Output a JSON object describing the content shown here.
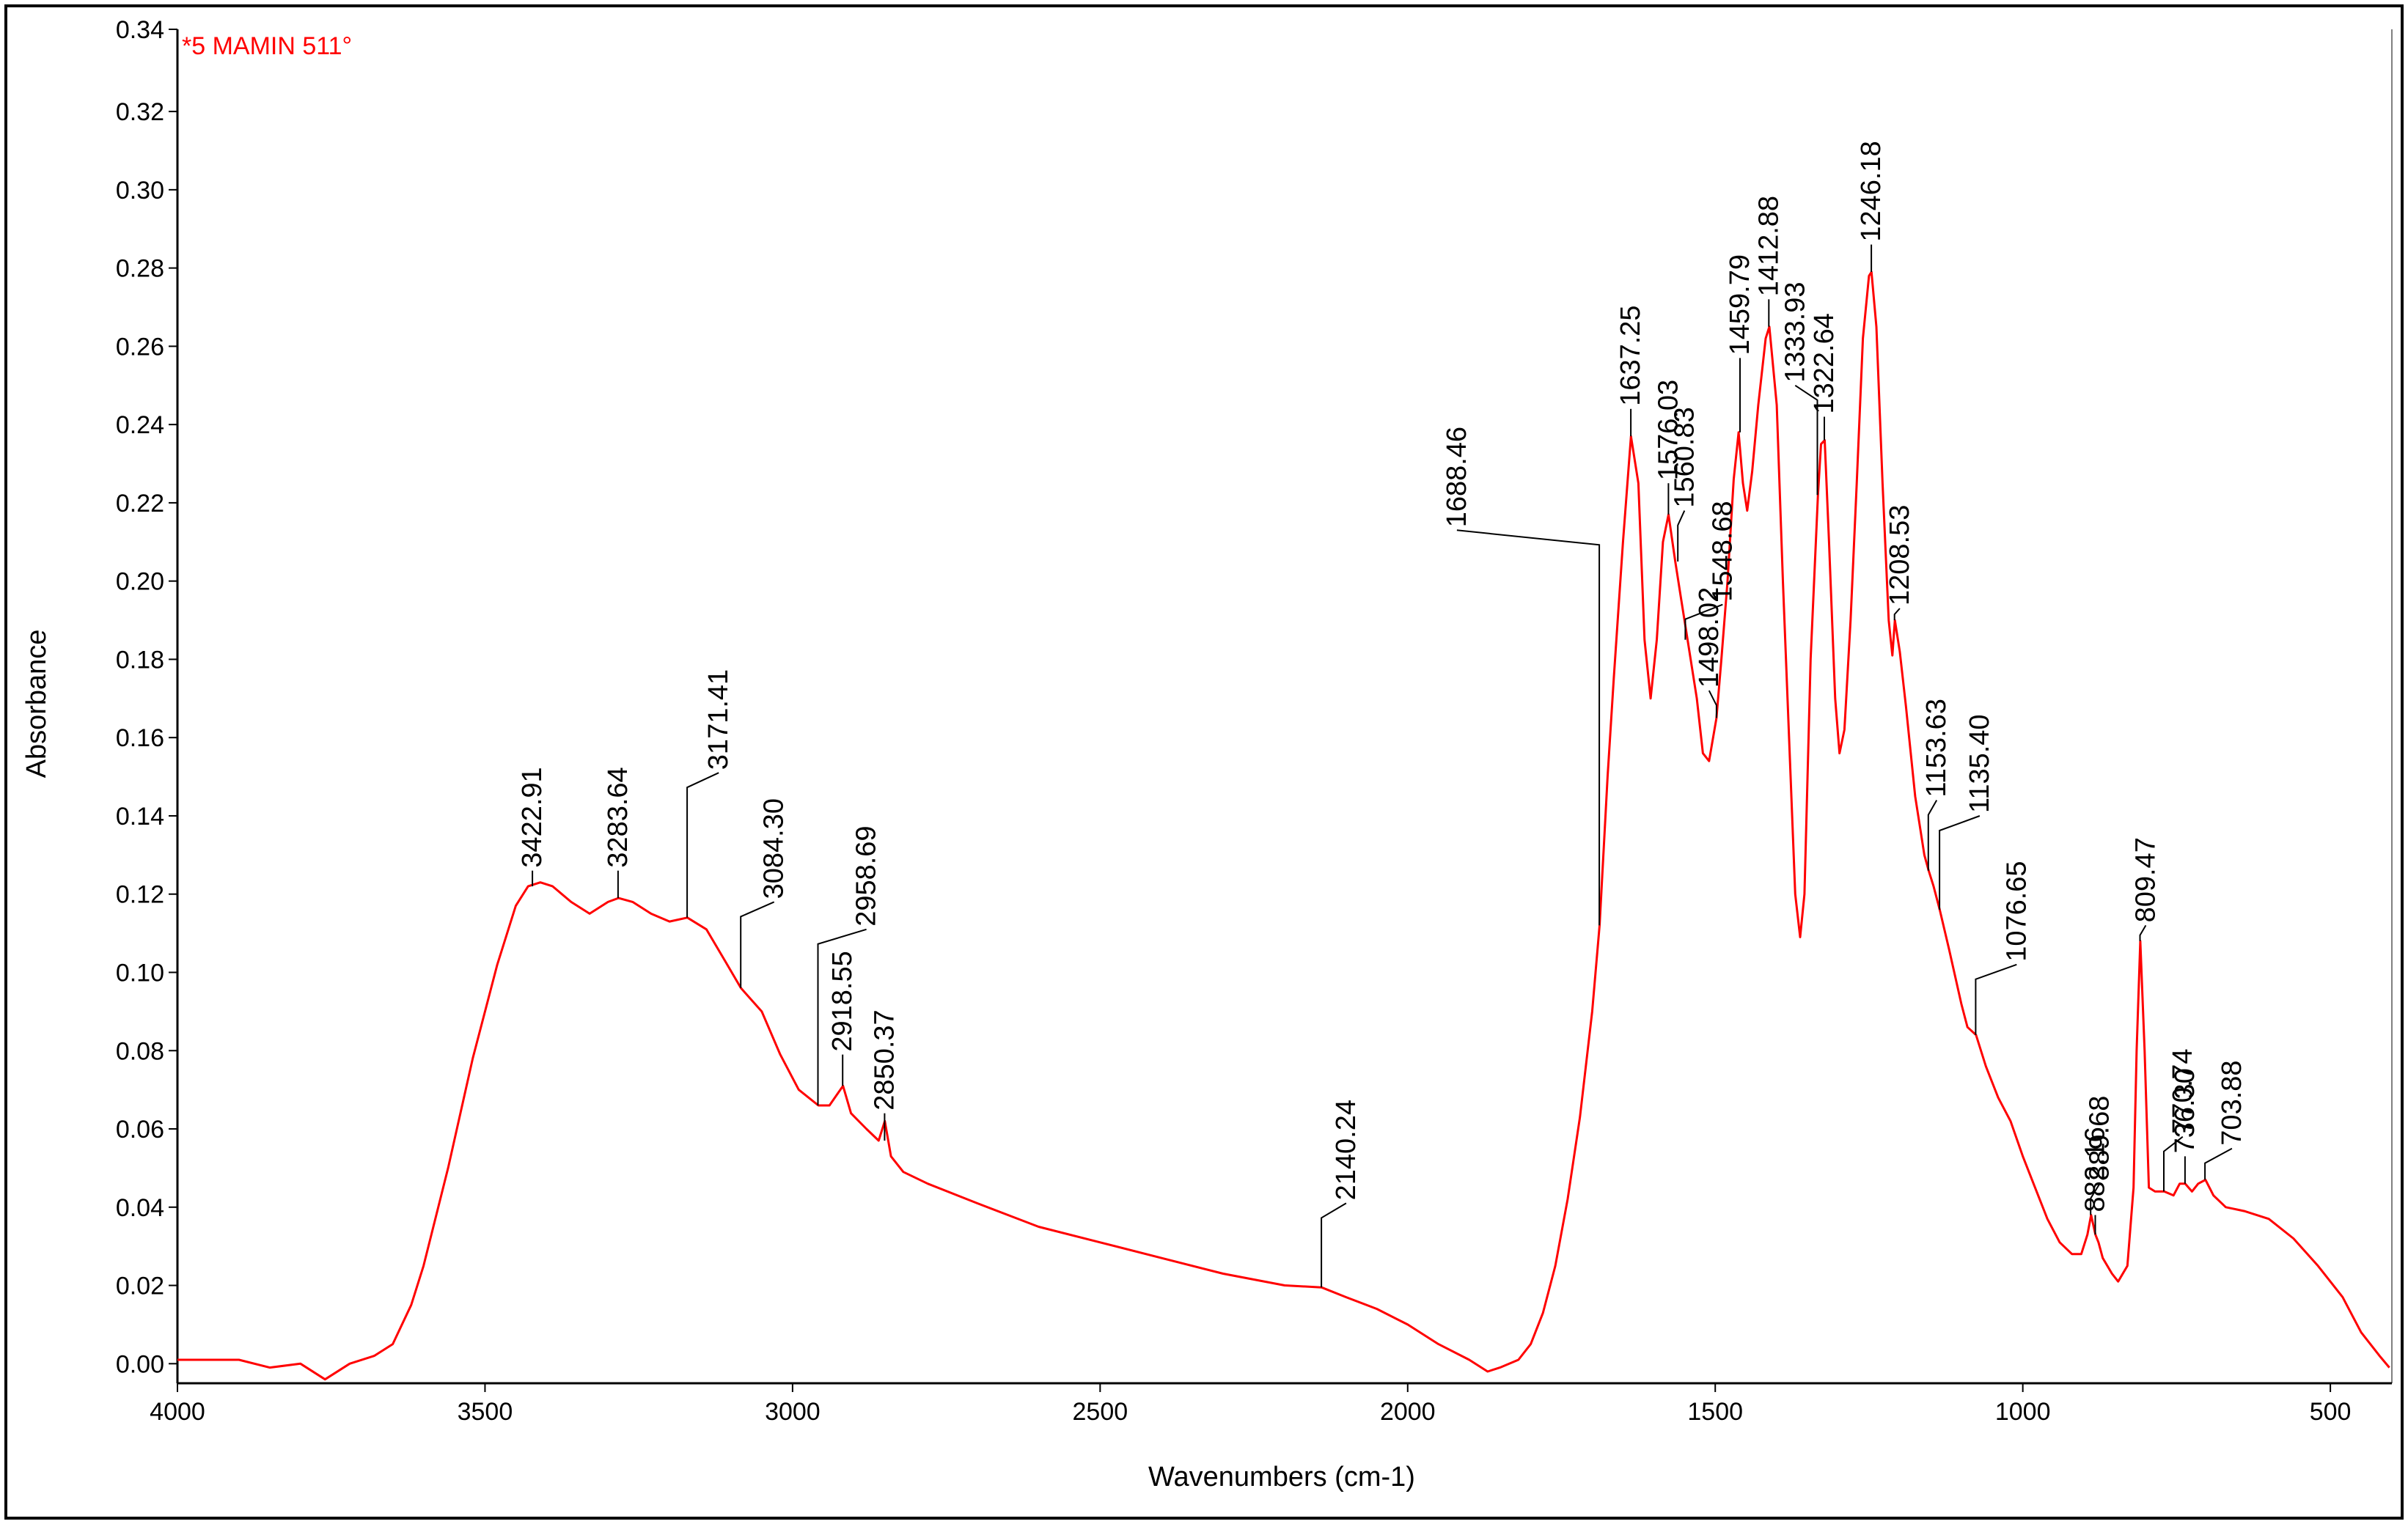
{
  "chart_data": {
    "type": "line",
    "sample_label": "*5 MAMIN 511°",
    "xlabel": "Wavenumbers (cm-1)",
    "ylabel": "Absorbance",
    "xlim": [
      4000,
      400
    ],
    "ylim": [
      -0.005,
      0.341
    ],
    "x_reversed": true,
    "grid": false,
    "colors": {
      "series": "#ff0000",
      "axis": "#000000"
    },
    "x_ticks": [
      4000,
      3500,
      3000,
      2500,
      2000,
      1500,
      1000,
      500
    ],
    "y_ticks": [
      {
        "v": 0.0,
        "label": "0.00"
      },
      {
        "v": 0.02,
        "label": "0.02"
      },
      {
        "v": 0.04,
        "label": "0.04"
      },
      {
        "v": 0.06,
        "label": "0.06"
      },
      {
        "v": 0.08,
        "label": "0.08"
      },
      {
        "v": 0.1,
        "label": "0.10"
      },
      {
        "v": 0.12,
        "label": "0.12"
      },
      {
        "v": 0.14,
        "label": "0.14"
      },
      {
        "v": 0.16,
        "label": "0.16"
      },
      {
        "v": 0.18,
        "label": "0.18"
      },
      {
        "v": 0.2,
        "label": "0.20"
      },
      {
        "v": 0.22,
        "label": "0.22"
      },
      {
        "v": 0.24,
        "label": "0.24"
      },
      {
        "v": 0.26,
        "label": "0.26"
      },
      {
        "v": 0.28,
        "label": "0.28"
      },
      {
        "v": 0.3,
        "label": "0.30"
      },
      {
        "v": 0.32,
        "label": "0.32"
      },
      {
        "v": 0.341,
        "label": "0.34"
      }
    ],
    "series": [
      {
        "values": [
          [
            4000,
            0.001
          ],
          [
            3900,
            0.001
          ],
          [
            3850,
            -0.001
          ],
          [
            3800,
            0.0
          ],
          [
            3760,
            -0.004
          ],
          [
            3720,
            0.0
          ],
          [
            3680,
            0.002
          ],
          [
            3650,
            0.005
          ],
          [
            3620,
            0.015
          ],
          [
            3600,
            0.025
          ],
          [
            3560,
            0.05
          ],
          [
            3520,
            0.078
          ],
          [
            3480,
            0.102
          ],
          [
            3450,
            0.117
          ],
          [
            3430,
            0.122
          ],
          [
            3410,
            0.123
          ],
          [
            3390,
            0.122
          ],
          [
            3360,
            0.118
          ],
          [
            3330,
            0.115
          ],
          [
            3300,
            0.118
          ],
          [
            3283,
            0.119
          ],
          [
            3260,
            0.118
          ],
          [
            3230,
            0.115
          ],
          [
            3200,
            0.113
          ],
          [
            3171,
            0.114
          ],
          [
            3140,
            0.111
          ],
          [
            3110,
            0.103
          ],
          [
            3084,
            0.096
          ],
          [
            3050,
            0.09
          ],
          [
            3020,
            0.079
          ],
          [
            2990,
            0.07
          ],
          [
            2958,
            0.066
          ],
          [
            2940,
            0.066
          ],
          [
            2918,
            0.071
          ],
          [
            2905,
            0.064
          ],
          [
            2880,
            0.06
          ],
          [
            2860,
            0.057
          ],
          [
            2850,
            0.062
          ],
          [
            2840,
            0.053
          ],
          [
            2820,
            0.049
          ],
          [
            2780,
            0.046
          ],
          [
            2700,
            0.041
          ],
          [
            2600,
            0.035
          ],
          [
            2500,
            0.031
          ],
          [
            2400,
            0.027
          ],
          [
            2300,
            0.023
          ],
          [
            2200,
            0.02
          ],
          [
            2140,
            0.0195
          ],
          [
            2100,
            0.017
          ],
          [
            2050,
            0.014
          ],
          [
            2000,
            0.01
          ],
          [
            1950,
            0.005
          ],
          [
            1900,
            0.001
          ],
          [
            1870,
            -0.002
          ],
          [
            1850,
            -0.001
          ],
          [
            1820,
            0.001
          ],
          [
            1800,
            0.005
          ],
          [
            1780,
            0.013
          ],
          [
            1760,
            0.025
          ],
          [
            1740,
            0.042
          ],
          [
            1720,
            0.063
          ],
          [
            1700,
            0.09
          ],
          [
            1688,
            0.112
          ],
          [
            1675,
            0.15
          ],
          [
            1665,
            0.175
          ],
          [
            1650,
            0.21
          ],
          [
            1637,
            0.237
          ],
          [
            1625,
            0.225
          ],
          [
            1615,
            0.185
          ],
          [
            1605,
            0.17
          ],
          [
            1595,
            0.185
          ],
          [
            1585,
            0.21
          ],
          [
            1576,
            0.217
          ],
          [
            1565,
            0.205
          ],
          [
            1556,
            0.196
          ],
          [
            1545,
            0.185
          ],
          [
            1530,
            0.17
          ],
          [
            1520,
            0.156
          ],
          [
            1510,
            0.154
          ],
          [
            1498,
            0.165
          ],
          [
            1490,
            0.18
          ],
          [
            1480,
            0.2
          ],
          [
            1470,
            0.226
          ],
          [
            1462,
            0.238
          ],
          [
            1455,
            0.225
          ],
          [
            1448,
            0.218
          ],
          [
            1440,
            0.228
          ],
          [
            1430,
            0.245
          ],
          [
            1418,
            0.262
          ],
          [
            1412,
            0.265
          ],
          [
            1400,
            0.245
          ],
          [
            1390,
            0.2
          ],
          [
            1380,
            0.16
          ],
          [
            1370,
            0.12
          ],
          [
            1362,
            0.109
          ],
          [
            1355,
            0.12
          ],
          [
            1345,
            0.18
          ],
          [
            1333,
            0.222
          ],
          [
            1328,
            0.235
          ],
          [
            1322,
            0.236
          ],
          [
            1315,
            0.21
          ],
          [
            1305,
            0.17
          ],
          [
            1298,
            0.156
          ],
          [
            1290,
            0.162
          ],
          [
            1280,
            0.19
          ],
          [
            1270,
            0.225
          ],
          [
            1260,
            0.262
          ],
          [
            1250,
            0.278
          ],
          [
            1246,
            0.279
          ],
          [
            1238,
            0.265
          ],
          [
            1228,
            0.225
          ],
          [
            1218,
            0.19
          ],
          [
            1212,
            0.181
          ],
          [
            1208,
            0.19
          ],
          [
            1200,
            0.182
          ],
          [
            1190,
            0.168
          ],
          [
            1175,
            0.145
          ],
          [
            1160,
            0.13
          ],
          [
            1153,
            0.126
          ],
          [
            1145,
            0.122
          ],
          [
            1135,
            0.116
          ],
          [
            1120,
            0.106
          ],
          [
            1100,
            0.092
          ],
          [
            1090,
            0.086
          ],
          [
            1076,
            0.084
          ],
          [
            1060,
            0.076
          ],
          [
            1040,
            0.068
          ],
          [
            1020,
            0.062
          ],
          [
            1000,
            0.053
          ],
          [
            980,
            0.045
          ],
          [
            960,
            0.037
          ],
          [
            940,
            0.031
          ],
          [
            920,
            0.028
          ],
          [
            905,
            0.028
          ],
          [
            895,
            0.033
          ],
          [
            889,
            0.038
          ],
          [
            882,
            0.033
          ],
          [
            877,
            0.031
          ],
          [
            870,
            0.027
          ],
          [
            855,
            0.023
          ],
          [
            845,
            0.021
          ],
          [
            830,
            0.025
          ],
          [
            820,
            0.045
          ],
          [
            815,
            0.08
          ],
          [
            809,
            0.108
          ],
          [
            802,
            0.08
          ],
          [
            795,
            0.045
          ],
          [
            785,
            0.044
          ],
          [
            770,
            0.044
          ],
          [
            755,
            0.043
          ],
          [
            745,
            0.046
          ],
          [
            736,
            0.046
          ],
          [
            725,
            0.044
          ],
          [
            715,
            0.046
          ],
          [
            703,
            0.047
          ],
          [
            690,
            0.043
          ],
          [
            670,
            0.04
          ],
          [
            640,
            0.039
          ],
          [
            600,
            0.037
          ],
          [
            560,
            0.032
          ],
          [
            520,
            0.025
          ],
          [
            480,
            0.017
          ],
          [
            450,
            0.008
          ],
          [
            420,
            0.002
          ],
          [
            404,
            -0.001
          ]
        ]
      }
    ],
    "peak_labels": [
      {
        "text": "3422.91",
        "x": 3422.91,
        "y": 0.122,
        "lx": 3422.91,
        "ly": 0.126
      },
      {
        "text": "3283.64",
        "x": 3283.64,
        "y": 0.119,
        "lx": 3283.64,
        "ly": 0.126
      },
      {
        "text": "3171.41",
        "x": 3171.41,
        "y": 0.114,
        "lx": 3120,
        "ly": 0.151
      },
      {
        "text": "3084.30",
        "x": 3084.3,
        "y": 0.096,
        "lx": 3030,
        "ly": 0.118
      },
      {
        "text": "2958.69",
        "x": 2958.69,
        "y": 0.066,
        "lx": 2880,
        "ly": 0.111
      },
      {
        "text": "2918.55",
        "x": 2918.55,
        "y": 0.071,
        "lx": 2918.55,
        "ly": 0.079
      },
      {
        "text": "2850.37",
        "x": 2850.37,
        "y": 0.057,
        "lx": 2850.37,
        "ly": 0.064
      },
      {
        "text": "2140.24",
        "x": 2140.24,
        "y": 0.0195,
        "lx": 2100,
        "ly": 0.041
      },
      {
        "text": "1688.46",
        "x": 1688.46,
        "y": 0.112,
        "lx": 1920,
        "ly": 0.213
      },
      {
        "text": "1637.25",
        "x": 1637.25,
        "y": 0.237,
        "lx": 1637.25,
        "ly": 0.244
      },
      {
        "text": "1576.03",
        "x": 1576.03,
        "y": 0.217,
        "lx": 1576.03,
        "ly": 0.225
      },
      {
        "text": "1560.83",
        "x": 1560.83,
        "y": 0.205,
        "lx": 1550,
        "ly": 0.218
      },
      {
        "text": "1498.02",
        "x": 1498.02,
        "y": 0.165,
        "lx": 1510,
        "ly": 0.172
      },
      {
        "text": "1548.68",
        "x": 1548.68,
        "y": 0.185,
        "lx": 1488,
        "ly": 0.194
      },
      {
        "text": "1459.79",
        "x": 1459.79,
        "y": 0.238,
        "lx": 1459.79,
        "ly": 0.257
      },
      {
        "text": "1412.88",
        "x": 1412.88,
        "y": 0.265,
        "lx": 1412.88,
        "ly": 0.272
      },
      {
        "text": "1333.93",
        "x": 1333.93,
        "y": 0.222,
        "lx": 1370,
        "ly": 0.25
      },
      {
        "text": "1322.64",
        "x": 1322.64,
        "y": 0.236,
        "lx": 1322.64,
        "ly": 0.242
      },
      {
        "text": "1246.18",
        "x": 1246.18,
        "y": 0.279,
        "lx": 1246.18,
        "ly": 0.286
      },
      {
        "text": "1208.53",
        "x": 1208.53,
        "y": 0.19,
        "lx": 1200,
        "ly": 0.193
      },
      {
        "text": "1153.63",
        "x": 1153.63,
        "y": 0.126,
        "lx": 1140,
        "ly": 0.144
      },
      {
        "text": "1135.40",
        "x": 1135.4,
        "y": 0.116,
        "lx": 1070,
        "ly": 0.14
      },
      {
        "text": "1076.65",
        "x": 1076.65,
        "y": 0.084,
        "lx": 1010,
        "ly": 0.102
      },
      {
        "text": "889.68",
        "x": 889.68,
        "y": 0.038,
        "lx": 875,
        "ly": 0.046
      },
      {
        "text": "882.16",
        "x": 882.16,
        "y": 0.033,
        "lx": 882.16,
        "ly": 0.038
      },
      {
        "text": "809.47",
        "x": 809.47,
        "y": 0.108,
        "lx": 800,
        "ly": 0.112
      },
      {
        "text": "770.74",
        "x": 770.74,
        "y": 0.044,
        "lx": 740,
        "ly": 0.058
      },
      {
        "text": "736.30",
        "x": 736.3,
        "y": 0.046,
        "lx": 736.3,
        "ly": 0.053
      },
      {
        "text": "703.88",
        "x": 703.88,
        "y": 0.047,
        "lx": 660,
        "ly": 0.055
      }
    ]
  }
}
